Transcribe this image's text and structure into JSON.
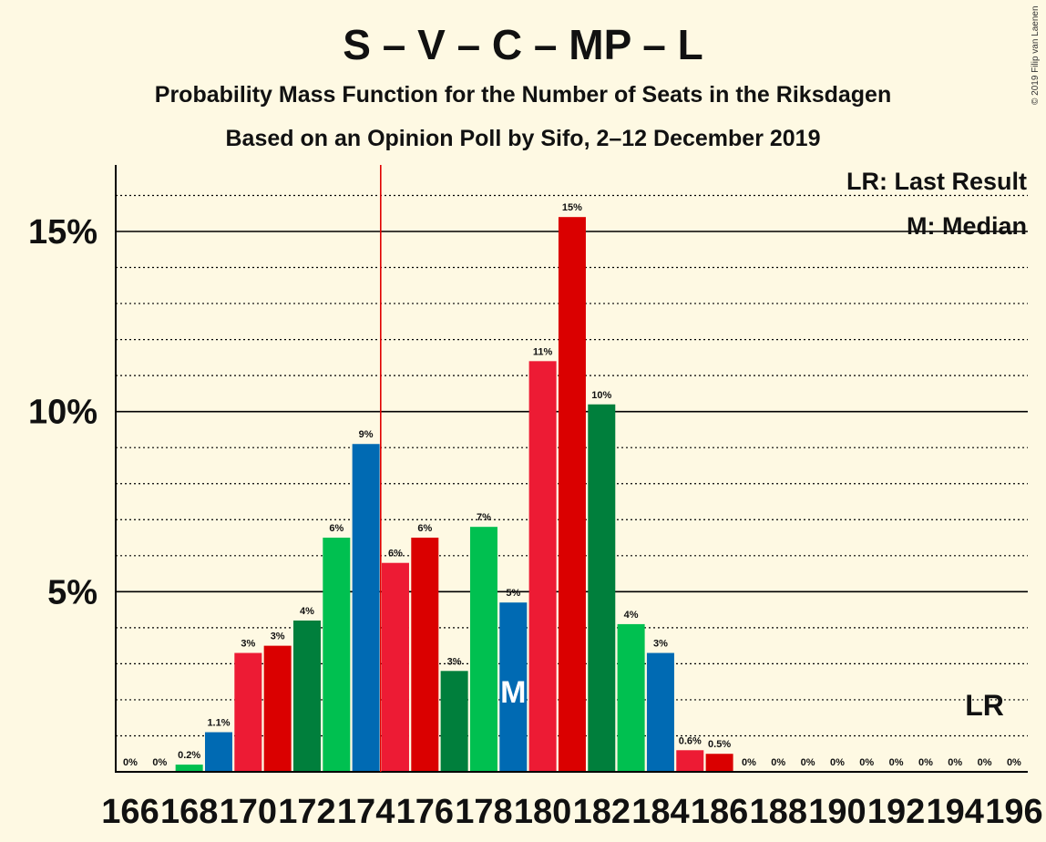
{
  "header": {
    "title": "S – V – C – MP – L",
    "subtitle1": "Probability Mass Function for the Number of Seats in the Riksdagen",
    "subtitle2": "Based on an Opinion Poll by Sifo, 2–12 December 2019",
    "copyright": "© 2019 Filip van Laenen"
  },
  "legend": {
    "lr": "LR: Last Result",
    "m": "M: Median"
  },
  "markers": {
    "median_label": "M",
    "last_result_label": "LR"
  },
  "colors": {
    "background": "#fef9e3",
    "S": "#ed1b34",
    "V": "#da0000",
    "C": "#007f3c",
    "MP": "#00c050",
    "L": "#006ab3",
    "majority_line": "#e00000",
    "text": "#111111"
  },
  "chart_data": {
    "type": "bar",
    "title": "S – V – C – MP – L",
    "x": [
      166,
      167,
      168,
      169,
      170,
      171,
      172,
      173,
      174,
      175,
      176,
      177,
      178,
      179,
      180,
      181,
      182,
      183,
      184,
      185,
      186,
      187,
      188,
      189,
      190,
      191,
      192,
      193,
      194,
      195,
      196
    ],
    "x_tick_labels": [
      "166",
      "168",
      "170",
      "172",
      "174",
      "176",
      "178",
      "180",
      "182",
      "184",
      "186",
      "188",
      "190",
      "192",
      "194",
      "196"
    ],
    "values": [
      0,
      0,
      0.2,
      1.1,
      3.3,
      3.5,
      4.2,
      6.5,
      9.1,
      5.8,
      6.5,
      2.8,
      6.8,
      4.7,
      11.4,
      15.4,
      10.2,
      4.1,
      3.3,
      0.6,
      0.5,
      0,
      0,
      0,
      0,
      0,
      0,
      0,
      0,
      0,
      0
    ],
    "value_labels": [
      "0%",
      "0%",
      "0.2%",
      "1.1%",
      "3%",
      "3%",
      "4%",
      "6%",
      "9%",
      "6%",
      "6%",
      "3%",
      "7%",
      "5%",
      "11%",
      "15%",
      "10%",
      "4%",
      "3%",
      "0.6%",
      "0.5%",
      "0%",
      "0%",
      "0%",
      "0%",
      "0%",
      "0%",
      "0%",
      "0%",
      "0%",
      "0%"
    ],
    "bar_colors": [
      "#ed1b34",
      "#da0000",
      "#00c050",
      "#006ab3",
      "#ed1b34",
      "#da0000",
      "#007f3c",
      "#00c050",
      "#006ab3",
      "#ed1b34",
      "#da0000",
      "#007f3c",
      "#00c050",
      "#006ab3",
      "#ed1b34",
      "#da0000",
      "#007f3c",
      "#00c050",
      "#006ab3",
      "#ed1b34",
      "#da0000",
      "#007f3c",
      "#00c050",
      "#006ab3",
      "#ed1b34",
      "#da0000",
      "#007f3c",
      "#00c050",
      "#006ab3",
      "#ed1b34",
      "#da0000"
    ],
    "y_ticks": [
      5,
      10,
      15
    ],
    "y_tick_labels": [
      "5%",
      "10%",
      "15%"
    ],
    "ylim": [
      0,
      16.8
    ],
    "median_seat": 179,
    "last_result_seat": 195,
    "majority_seat": 175,
    "grid": true,
    "legend_position": "top-right"
  }
}
